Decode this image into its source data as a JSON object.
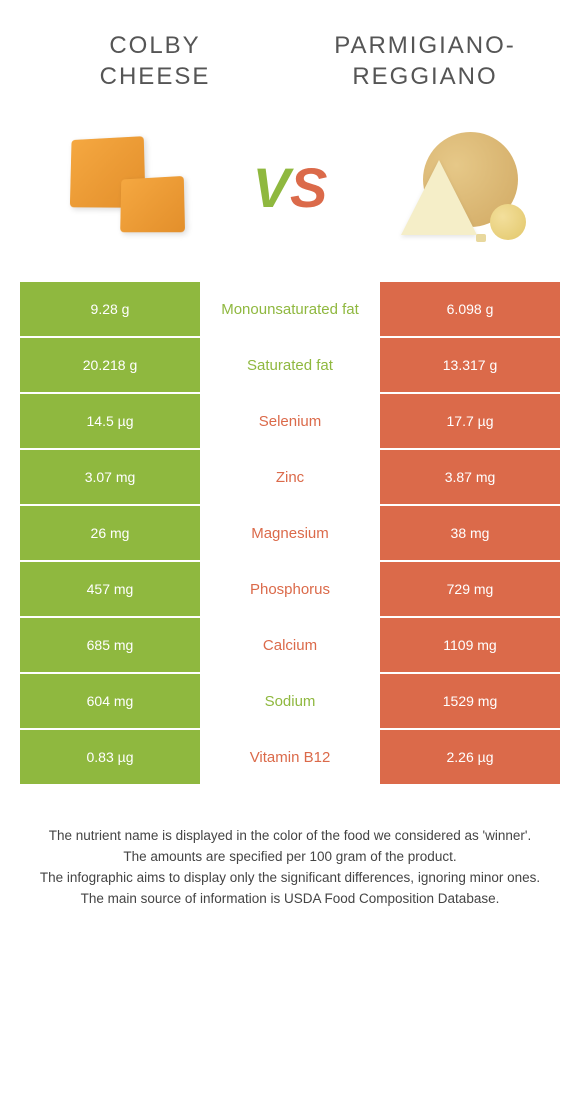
{
  "colors": {
    "green": "#8fb83f",
    "orange": "#db6a4a",
    "text": "#555555",
    "row_white": "#ffffff"
  },
  "header": {
    "left_title_line1": "COLBY",
    "left_title_line2": "CHEESE",
    "right_title_line1": "PARMIGIANO-",
    "right_title_line2": "REGGIANO"
  },
  "vs": {
    "v": "V",
    "s": "S"
  },
  "table": {
    "type": "comparison-table",
    "left_color": "#8fb83f",
    "right_color": "#db6a4a",
    "winner_green": "#8fb83f",
    "winner_orange": "#db6a4a",
    "rows": [
      {
        "left": "9.28 g",
        "label": "Monounsaturated fat",
        "right": "6.098 g",
        "winner": "green"
      },
      {
        "left": "20.218 g",
        "label": "Saturated fat",
        "right": "13.317 g",
        "winner": "green"
      },
      {
        "left": "14.5 µg",
        "label": "Selenium",
        "right": "17.7 µg",
        "winner": "orange"
      },
      {
        "left": "3.07 mg",
        "label": "Zinc",
        "right": "3.87 mg",
        "winner": "orange"
      },
      {
        "left": "26 mg",
        "label": "Magnesium",
        "right": "38 mg",
        "winner": "orange"
      },
      {
        "left": "457 mg",
        "label": "Phosphorus",
        "right": "729 mg",
        "winner": "orange"
      },
      {
        "left": "685 mg",
        "label": "Calcium",
        "right": "1109 mg",
        "winner": "orange"
      },
      {
        "left": "604 mg",
        "label": "Sodium",
        "right": "1529 mg",
        "winner": "green"
      },
      {
        "left": "0.83 µg",
        "label": "Vitamin B12",
        "right": "2.26 µg",
        "winner": "orange"
      }
    ]
  },
  "footer": {
    "line1": "The nutrient name is displayed in the color of the food we considered as 'winner'.",
    "line2": "The amounts are specified per 100 gram of the product.",
    "line3": "The infographic aims to display only the significant differences, ignoring minor ones.",
    "line4": "The main source of information is USDA Food Composition Database."
  }
}
